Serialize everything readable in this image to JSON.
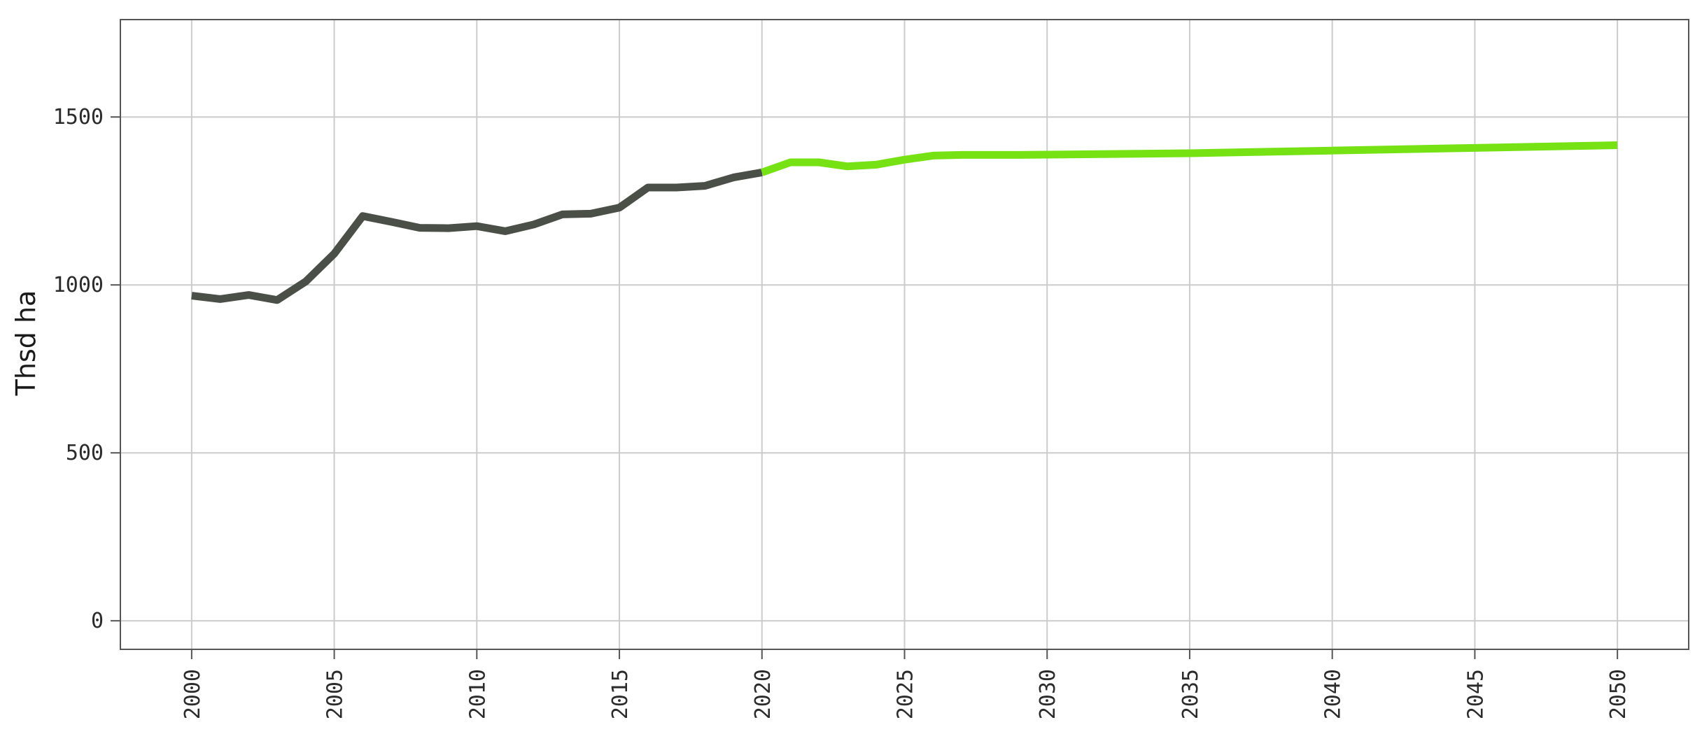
{
  "chart_data": {
    "type": "line",
    "title": "",
    "xlabel": "",
    "ylabel": "Thsd ha",
    "xlim": [
      1997.5,
      2052.5
    ],
    "ylim": [
      -85,
      1790
    ],
    "x_ticks": [
      2000,
      2005,
      2010,
      2015,
      2020,
      2025,
      2030,
      2035,
      2040,
      2045,
      2050
    ],
    "y_ticks": [
      0,
      500,
      1000,
      1500
    ],
    "grid": true,
    "legend": "none",
    "series": [
      {
        "color": "#4a4f47",
        "x": [
          2000,
          2001,
          2002,
          2003,
          2004,
          2005,
          2006,
          2007,
          2008,
          2009,
          2010,
          2011,
          2012,
          2013,
          2014,
          2015,
          2016,
          2017,
          2018,
          2019,
          2020
        ],
        "y": [
          968,
          958,
          970,
          955,
          1010,
          1093,
          1205,
          1188,
          1170,
          1169,
          1175,
          1160,
          1180,
          1210,
          1212,
          1230,
          1290,
          1290,
          1295,
          1320,
          1335
        ]
      },
      {
        "color": "#76e214",
        "x": [
          2020,
          2021,
          2022,
          2023,
          2024,
          2025,
          2026,
          2027,
          2028,
          2029,
          2030,
          2035,
          2040,
          2045,
          2050
        ],
        "y": [
          1335,
          1365,
          1365,
          1353,
          1358,
          1373,
          1385,
          1387,
          1387,
          1387,
          1388,
          1392,
          1400,
          1408,
          1416
        ]
      }
    ]
  }
}
